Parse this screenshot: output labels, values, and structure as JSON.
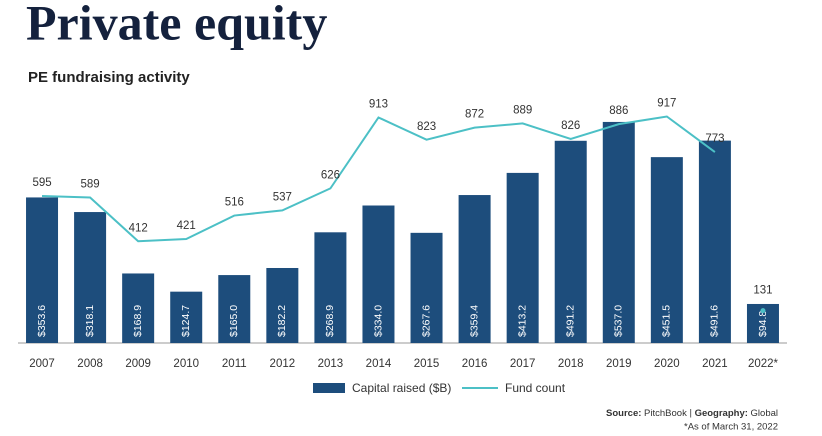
{
  "chart_data": {
    "type": "bar-line",
    "title": "Private equity",
    "subtitle": "PE fundraising activity",
    "categories": [
      "2007",
      "2008",
      "2009",
      "2010",
      "2011",
      "2012",
      "2013",
      "2014",
      "2015",
      "2016",
      "2017",
      "2018",
      "2019",
      "2020",
      "2021",
      "2022*"
    ],
    "series": [
      {
        "name": "Capital raised ($B)",
        "type": "bar",
        "color": "#1d4d7c",
        "values": [
          353.6,
          318.1,
          168.9,
          124.7,
          165.0,
          182.2,
          268.9,
          334.0,
          267.6,
          359.4,
          413.2,
          491.2,
          537.0,
          451.5,
          491.6,
          94.8
        ],
        "value_labels": [
          "$353.6",
          "$318.1",
          "$168.9",
          "$124.7",
          "$165.0",
          "$182.2",
          "$268.9",
          "$334.0",
          "$267.6",
          "$359.4",
          "$413.2",
          "$491.2",
          "$537.0",
          "$451.5",
          "$491.6",
          "$94.8"
        ]
      },
      {
        "name": "Fund count",
        "type": "line",
        "axis": "y2",
        "color": "#4cc0c6",
        "values": [
          595,
          589,
          412,
          421,
          516,
          537,
          626,
          913,
          823,
          872,
          889,
          826,
          886,
          917,
          773,
          131
        ]
      }
    ],
    "ylim": [
      0,
      600
    ],
    "y2lim": [
      0,
      1000
    ],
    "source_label": "Source:",
    "source": "PitchBook",
    "geography_label": "Geography:",
    "geography": "Global",
    "note": "*As of March 31, 2022"
  }
}
